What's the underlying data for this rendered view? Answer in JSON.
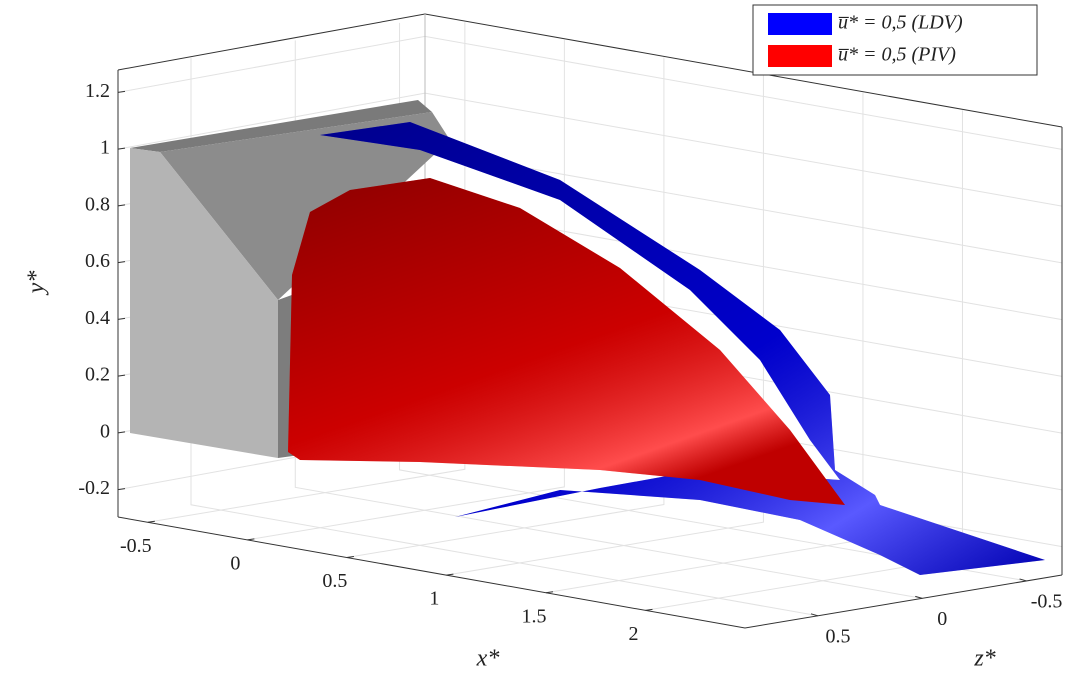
{
  "chart_data": {
    "type": "surface3d",
    "xlabel": "x*",
    "ylabel": "y*",
    "zlabel": "z*",
    "xlim": [
      -0.65,
      2.5
    ],
    "xticks": [
      -0.5,
      0,
      0.5,
      1,
      1.5,
      2
    ],
    "ylim": [
      -0.3,
      1.3
    ],
    "yticks": [
      -0.2,
      0,
      0.2,
      0.4,
      0.6,
      0.8,
      1,
      1.2
    ],
    "zlim": [
      0.85,
      -0.67
    ],
    "zticks": [
      0.5,
      0,
      -0.5
    ],
    "grid": true,
    "legend": "upper right",
    "series": [
      {
        "name": "u̅* = 0,5 (LDV)",
        "color": "#0000ff"
      },
      {
        "name": "u̅* = 0,5 (PIV)",
        "color": "#ff0000"
      }
    ]
  }
}
